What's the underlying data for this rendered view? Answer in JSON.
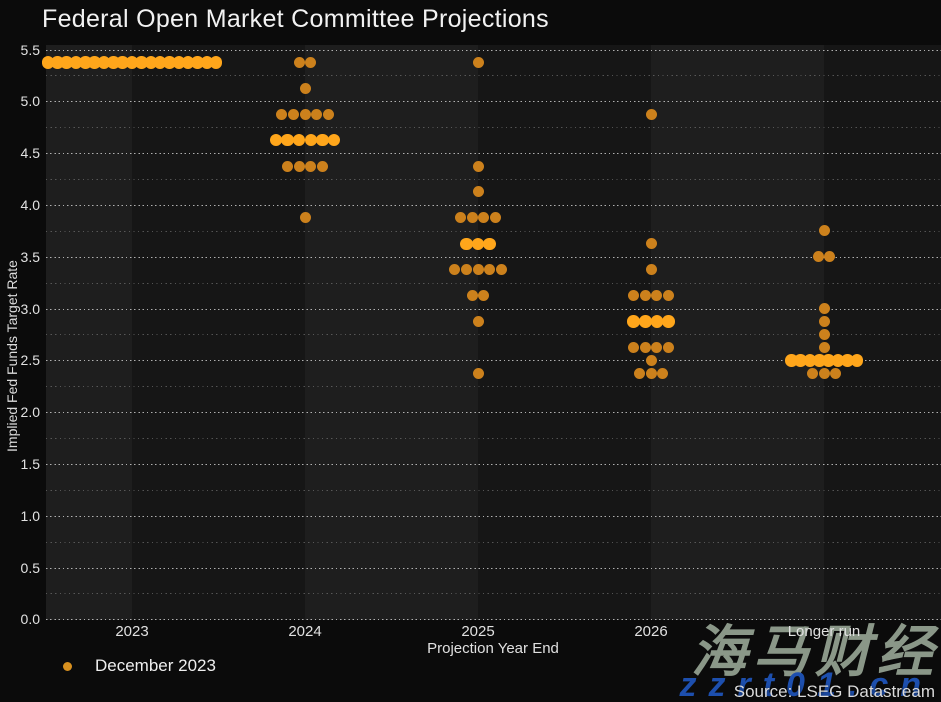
{
  "header": {
    "title": "Federal Open Market Committee Projections"
  },
  "axes": {
    "y_title": "Implied Fed Funds Target Rate",
    "x_title": "Projection Year End"
  },
  "legend": {
    "label": "December 2023",
    "dot_color": "#d8901f"
  },
  "source": {
    "text": "Source: LSEG Datastream"
  },
  "watermark": {
    "line1": "海马财经",
    "line2": "zzrt01.cn"
  },
  "colors": {
    "background": "#0b0b0b",
    "band_light": "#1e1e1e",
    "band_dark": "#161616",
    "grid_major": "rgba(215,215,215,0.8)",
    "grid_minor": "rgba(145,145,145,0.5)",
    "dot": "#cc811c",
    "dot_median": "#ffa61b",
    "text": "#e2e2e2"
  },
  "chart_data": {
    "type": "scatter",
    "title": "Federal Open Market Committee Projections",
    "xlabel": "Projection Year End",
    "ylabel": "Implied Fed Funds Target Rate",
    "categories": [
      "2023",
      "2024",
      "2025",
      "2026",
      "Longer run"
    ],
    "ylim": [
      0.0,
      5.5
    ],
    "y_major_tick_step": 0.5,
    "y_minor_tick_step": 0.25,
    "grid": true,
    "legend_position": "bottom-left",
    "series": [
      {
        "name": "December 2023",
        "dot_groups": [
          {
            "category": "2023",
            "points": [
              {
                "rate": 5.375,
                "count": 19,
                "median": true
              }
            ]
          },
          {
            "category": "2024",
            "points": [
              {
                "rate": 5.375,
                "count": 2
              },
              {
                "rate": 5.125,
                "count": 1
              },
              {
                "rate": 4.875,
                "count": 5
              },
              {
                "rate": 4.625,
                "count": 6,
                "median": true
              },
              {
                "rate": 4.375,
                "count": 4
              },
              {
                "rate": 3.875,
                "count": 1
              }
            ]
          },
          {
            "category": "2025",
            "points": [
              {
                "rate": 5.375,
                "count": 1
              },
              {
                "rate": 4.375,
                "count": 1
              },
              {
                "rate": 4.125,
                "count": 1
              },
              {
                "rate": 3.875,
                "count": 4
              },
              {
                "rate": 3.625,
                "count": 3,
                "median": true
              },
              {
                "rate": 3.375,
                "count": 5
              },
              {
                "rate": 3.125,
                "count": 2
              },
              {
                "rate": 2.875,
                "count": 1
              },
              {
                "rate": 2.375,
                "count": 1
              }
            ]
          },
          {
            "category": "2026",
            "points": [
              {
                "rate": 4.875,
                "count": 1
              },
              {
                "rate": 3.625,
                "count": 1
              },
              {
                "rate": 3.375,
                "count": 1
              },
              {
                "rate": 3.125,
                "count": 4
              },
              {
                "rate": 2.875,
                "count": 4,
                "median": true
              },
              {
                "rate": 2.625,
                "count": 4
              },
              {
                "rate": 2.5,
                "count": 1
              },
              {
                "rate": 2.375,
                "count": 3
              }
            ]
          },
          {
            "category": "Longer run",
            "points": [
              {
                "rate": 3.75,
                "count": 1
              },
              {
                "rate": 3.5,
                "count": 2
              },
              {
                "rate": 3.0,
                "count": 1
              },
              {
                "rate": 2.875,
                "count": 1
              },
              {
                "rate": 2.75,
                "count": 1
              },
              {
                "rate": 2.625,
                "count": 1
              },
              {
                "rate": 2.5,
                "count": 8,
                "median": true
              },
              {
                "rate": 2.375,
                "count": 3
              }
            ]
          }
        ]
      }
    ]
  }
}
